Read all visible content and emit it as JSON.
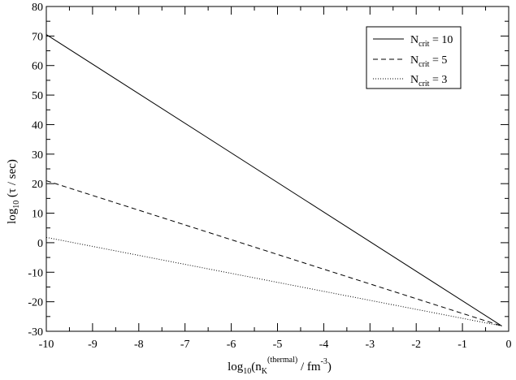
{
  "chart_data": {
    "type": "line",
    "title": "",
    "xlabel": {
      "prefix": "log",
      "sub": "10",
      "mid": "(n",
      "sub2": "K",
      "sup2": "(thermal)",
      "tail": " / fm",
      "sup": "-3",
      "end": ")"
    },
    "ylabel": {
      "prefix": "log",
      "sub": "10",
      "tail": " (τ / sec)"
    },
    "xlim": [
      -10,
      0
    ],
    "ylim": [
      -30,
      80
    ],
    "xticks": [
      "-10",
      "-9",
      "-8",
      "-7",
      "-6",
      "-5",
      "-4",
      "-3",
      "-2",
      "-1",
      "0"
    ],
    "xtick_values": [
      -10,
      -9,
      -8,
      -7,
      -6,
      -5,
      -4,
      -3,
      -2,
      -1,
      0
    ],
    "yticks": [
      "-30",
      "-20",
      "-10",
      "0",
      "10",
      "20",
      "30",
      "40",
      "50",
      "60",
      "70",
      "80"
    ],
    "ytick_values": [
      -30,
      -20,
      -10,
      0,
      10,
      20,
      30,
      40,
      50,
      60,
      70,
      80
    ],
    "grid": false,
    "legend_position": "top-right",
    "series": [
      {
        "name": "N",
        "name_sub": "crit",
        "name_tail": " = 10",
        "style": "solid",
        "x": [
          -10,
          -0.15
        ],
        "y": [
          70.5,
          -28.2
        ]
      },
      {
        "name": "N",
        "name_sub": "crit",
        "name_tail": " = 5",
        "style": "dashed",
        "x": [
          -10,
          -0.15
        ],
        "y": [
          21.0,
          -28.2
        ]
      },
      {
        "name": "N",
        "name_sub": "crit",
        "name_tail": " = 3",
        "style": "dotted",
        "x": [
          -10,
          -0.15
        ],
        "y": [
          1.8,
          -28.2
        ]
      }
    ],
    "colors": {
      "line": "#000000",
      "background": "#ffffff"
    }
  }
}
